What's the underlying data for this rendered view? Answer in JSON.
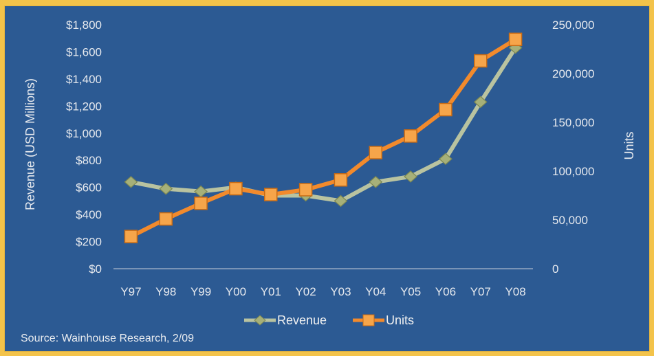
{
  "chart_data": {
    "type": "line",
    "categories": [
      "Y97",
      "Y98",
      "Y99",
      "Y00",
      "Y01",
      "Y02",
      "Y03",
      "Y04",
      "Y05",
      "Y06",
      "Y07",
      "Y08"
    ],
    "series": [
      {
        "name": "Revenue",
        "axis": "left",
        "color": "#b9c3a0",
        "values": [
          640,
          590,
          570,
          600,
          540,
          540,
          500,
          640,
          680,
          810,
          1230,
          1630
        ]
      },
      {
        "name": "Units",
        "axis": "right",
        "color": "#f28a2c",
        "values": [
          33000,
          51000,
          67000,
          82000,
          76000,
          81000,
          91000,
          119000,
          136000,
          163000,
          213000,
          235000
        ]
      }
    ],
    "ylabel": "Revenue (USD Millions)",
    "y2label": "Units",
    "ylim": [
      0,
      1800
    ],
    "y2lim": [
      0,
      250000
    ],
    "yticks": [
      "$0",
      "$200",
      "$400",
      "$600",
      "$800",
      "$1,000",
      "$1,200",
      "$1,400",
      "$1,600",
      "$1,800"
    ],
    "y2ticks": [
      "0",
      "50,000",
      "100,000",
      "150,000",
      "200,000",
      "250,000"
    ],
    "legend_position": "bottom",
    "grid": false
  },
  "source_text": "Source: Wainhouse Research, 2/09"
}
